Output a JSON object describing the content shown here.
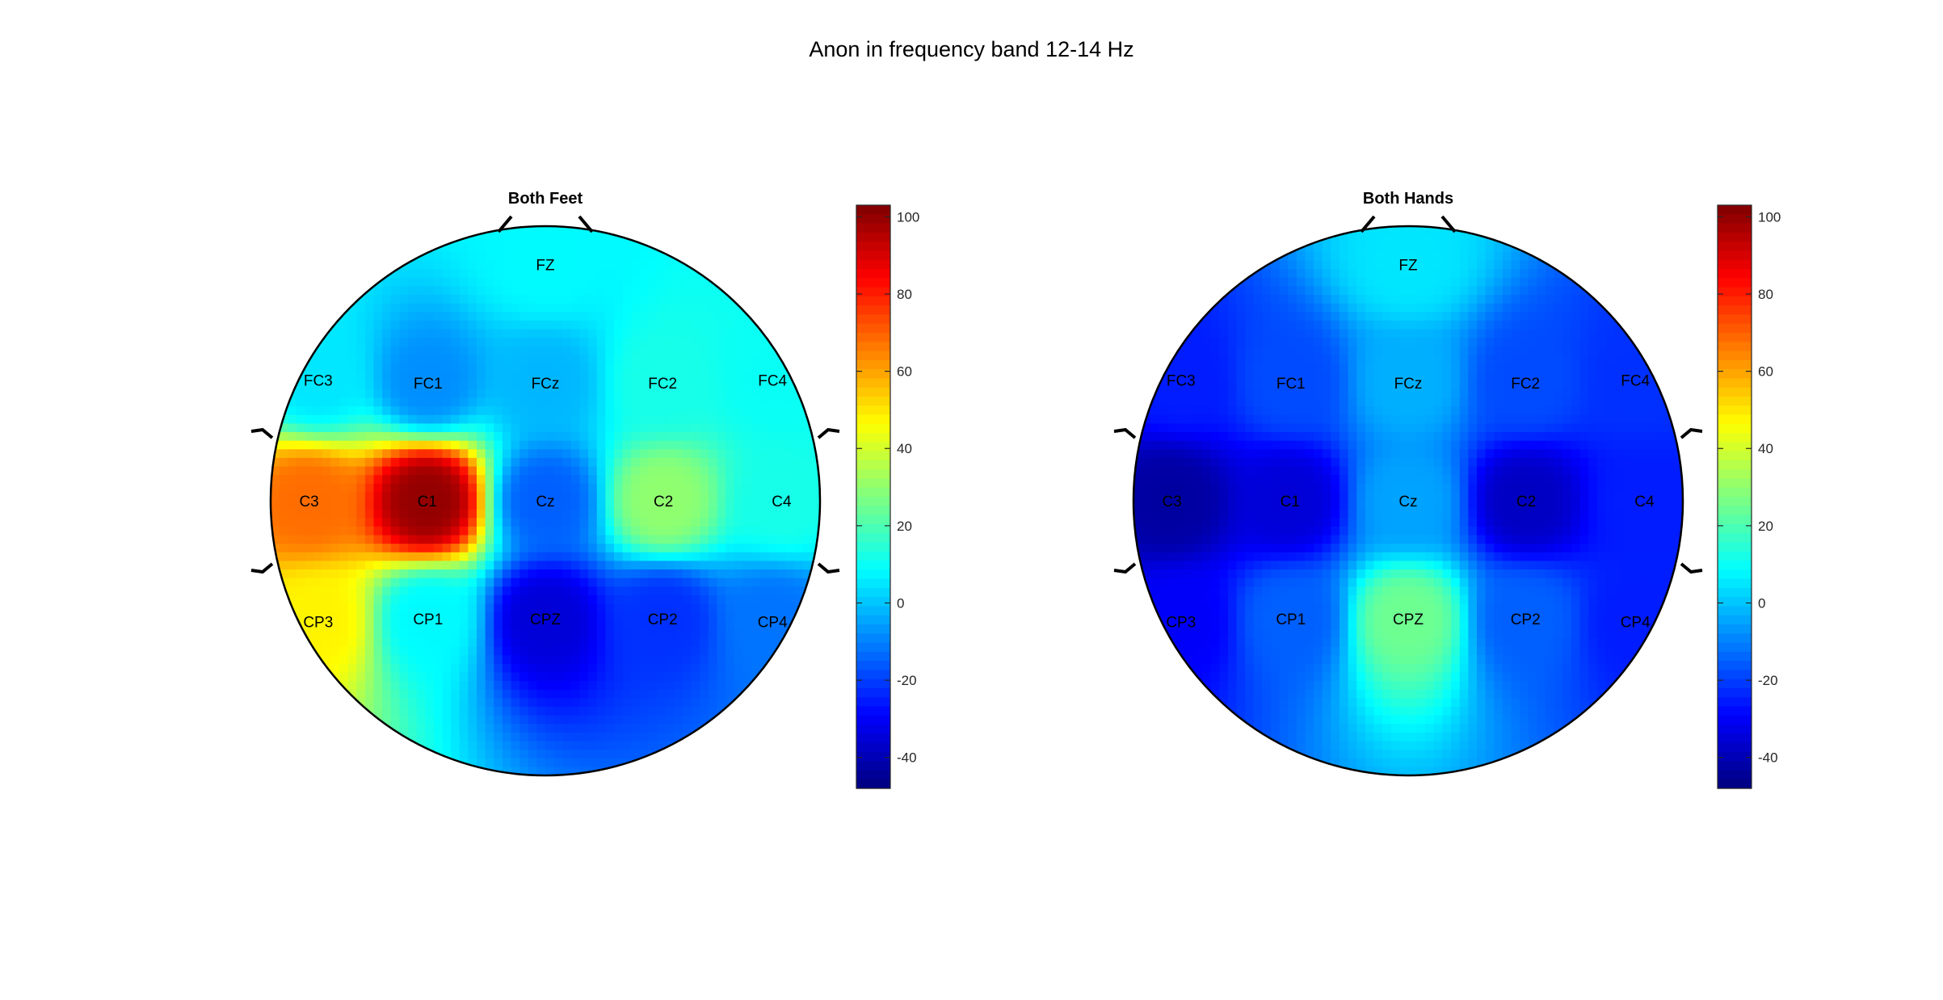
{
  "figure": {
    "title": "Anon in frequency band 12-14 Hz"
  },
  "chart_data": [
    {
      "type": "heatmap",
      "subtitle": "Both Feet",
      "colormap": "jet",
      "clim": [
        -48,
        103
      ],
      "colorbar_ticks": [
        100,
        80,
        60,
        40,
        20,
        0,
        -20,
        -40
      ],
      "electrodes": [
        {
          "name": "FZ",
          "x": 0.0,
          "y": 0.86,
          "value": 8
        },
        {
          "name": "FC3",
          "x": -0.827,
          "y": 0.439,
          "value": 5
        },
        {
          "name": "FC1",
          "x": -0.427,
          "y": 0.429,
          "value": -8
        },
        {
          "name": "FCz",
          "x": 0.0,
          "y": 0.43,
          "value": -2
        },
        {
          "name": "FC2",
          "x": 0.427,
          "y": 0.429,
          "value": 12
        },
        {
          "name": "FC4",
          "x": 0.827,
          "y": 0.439,
          "value": 10
        },
        {
          "name": "C3",
          "x": -0.86,
          "y": 0.0,
          "value": 68
        },
        {
          "name": "C1",
          "x": -0.43,
          "y": 0.0,
          "value": 100
        },
        {
          "name": "Cz",
          "x": 0.0,
          "y": 0.0,
          "value": -15
        },
        {
          "name": "C2",
          "x": 0.43,
          "y": 0.0,
          "value": 30
        },
        {
          "name": "C4",
          "x": 0.86,
          "y": 0.0,
          "value": 12
        },
        {
          "name": "CP3",
          "x": -0.827,
          "y": -0.439,
          "value": 48
        },
        {
          "name": "CP1",
          "x": -0.427,
          "y": -0.429,
          "value": 8
        },
        {
          "name": "CPZ",
          "x": 0.0,
          "y": -0.43,
          "value": -35
        },
        {
          "name": "CP2",
          "x": 0.427,
          "y": -0.429,
          "value": -22
        },
        {
          "name": "CP4",
          "x": 0.827,
          "y": -0.439,
          "value": -12
        }
      ]
    },
    {
      "type": "heatmap",
      "subtitle": "Both Hands",
      "colormap": "jet",
      "clim": [
        -48,
        103
      ],
      "colorbar_ticks": [
        100,
        80,
        60,
        40,
        20,
        0,
        -20,
        -40
      ],
      "electrodes": [
        {
          "name": "FZ",
          "x": 0.0,
          "y": 0.86,
          "value": 5
        },
        {
          "name": "FC3",
          "x": -0.827,
          "y": 0.439,
          "value": -25
        },
        {
          "name": "FC1",
          "x": -0.427,
          "y": 0.429,
          "value": -18
        },
        {
          "name": "FCz",
          "x": 0.0,
          "y": 0.43,
          "value": -3
        },
        {
          "name": "FC2",
          "x": 0.427,
          "y": 0.429,
          "value": -18
        },
        {
          "name": "FC4",
          "x": 0.827,
          "y": 0.439,
          "value": -22
        },
        {
          "name": "C3",
          "x": -0.86,
          "y": 0.0,
          "value": -43
        },
        {
          "name": "C1",
          "x": -0.43,
          "y": 0.0,
          "value": -35
        },
        {
          "name": "Cz",
          "x": 0.0,
          "y": 0.0,
          "value": -5
        },
        {
          "name": "C2",
          "x": 0.43,
          "y": 0.0,
          "value": -38
        },
        {
          "name": "C4",
          "x": 0.86,
          "y": 0.0,
          "value": -25
        },
        {
          "name": "CP3",
          "x": -0.827,
          "y": -0.439,
          "value": -30
        },
        {
          "name": "CP1",
          "x": -0.427,
          "y": -0.429,
          "value": -15
        },
        {
          "name": "CPZ",
          "x": 0.0,
          "y": -0.43,
          "value": 25
        },
        {
          "name": "CP2",
          "x": 0.427,
          "y": -0.429,
          "value": -15
        },
        {
          "name": "CP4",
          "x": 0.827,
          "y": -0.439,
          "value": -25
        }
      ]
    }
  ]
}
